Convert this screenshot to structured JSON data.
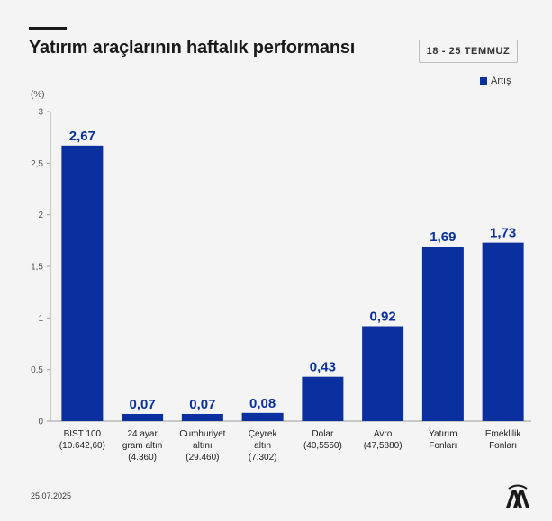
{
  "header": {
    "title": "Yatırım araçlarının haftalık performansı",
    "date_range": "18 - 25 TEMMUZ"
  },
  "legend": {
    "label": "Artış",
    "color": "#0a2f9f"
  },
  "footer": {
    "date": "25.07.2025",
    "logo": "aa-logo-icon"
  },
  "chart_data": {
    "type": "bar",
    "title": "Yatırım araçlarının haftalık performansı",
    "ylabel": "(%)",
    "xlabel": "",
    "ylim": [
      0,
      3
    ],
    "yticks": [
      "0",
      "0,5",
      "1",
      "1,5",
      "2",
      "2,5",
      "3"
    ],
    "ytick_values": [
      0,
      0.5,
      1,
      1.5,
      2,
      2.5,
      3
    ],
    "grid": false,
    "legend_position": "top-right",
    "series": [
      {
        "name": "Artış",
        "color": "#0a2f9f",
        "values": [
          2.67,
          0.07,
          0.07,
          0.08,
          0.43,
          0.92,
          1.69,
          1.73
        ]
      }
    ],
    "categories": [
      [
        "BIST 100",
        "(10.642,60)"
      ],
      [
        "24 ayar",
        "gram altın",
        "(4.360)"
      ],
      [
        "Cumhuriyet",
        "altını",
        "(29.460)"
      ],
      [
        "Çeyrek",
        "altın",
        "(7.302)"
      ],
      [
        "Dolar",
        "(40,5550)"
      ],
      [
        "Avro",
        "(47,5880)"
      ],
      [
        "Yatırım",
        "Fonları"
      ],
      [
        "Emeklilik",
        "Fonları"
      ]
    ],
    "value_labels": [
      "2,67",
      "0,07",
      "0,07",
      "0,08",
      "0,43",
      "0,92",
      "1,69",
      "1,73"
    ]
  }
}
